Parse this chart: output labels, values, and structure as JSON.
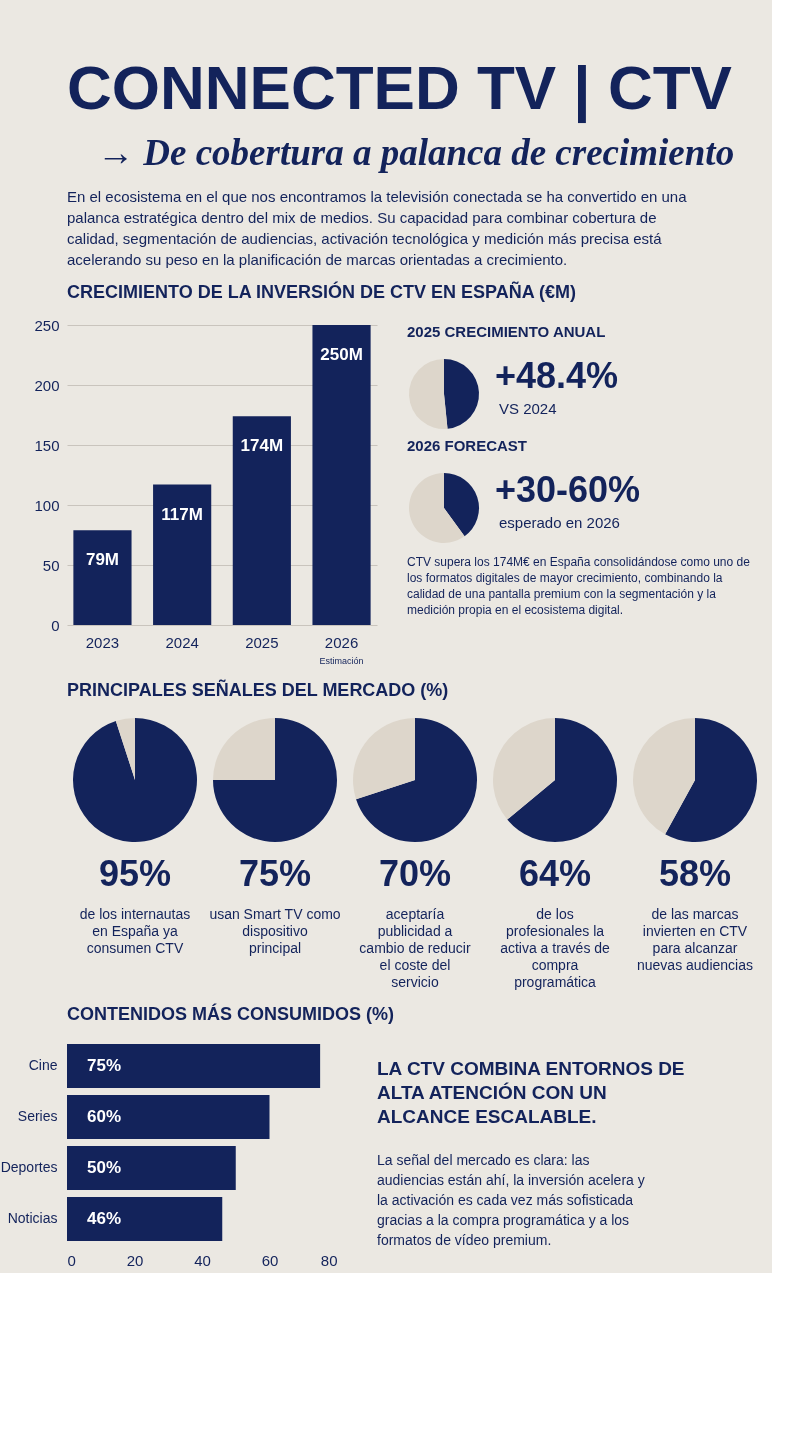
{
  "chart_data": [
    {
      "type": "other",
      "title": "CONNECTED TV | CTV",
      "subtitle": "→ De cobertura a palanca de crecimiento",
      "annotations": [
        "En el ecosistema en el que nos encontramos la televisión conectada se ha convertido en una palanca estratégica dentro del mix de medios. Su capacidad para combinar cobertura de calidad, segmentación de audiencias, activación tecnológica y medición más precisa está acelerando su peso en la planificación de marcas orientadas a crecimiento."
      ]
    },
    {
      "type": "bar",
      "title": "CRECIMIENTO DE LA INVERSIÓN DE CTV EN ESPAÑA (€M)",
      "categories": [
        "2023",
        "2024",
        "2025",
        "2026"
      ],
      "values": [
        79,
        117,
        174,
        250
      ],
      "value_labels": [
        "79M",
        "117M",
        "174M",
        "250M"
      ],
      "color": "#13235b",
      "ylim": [
        0,
        250
      ],
      "yticks": [
        0,
        50,
        100,
        150,
        200,
        250
      ],
      "grid": "y",
      "annotations": [
        "Estimación"
      ]
    },
    {
      "type": "pie",
      "title": "2025 CRECIMIENTO ANUAL",
      "values": [
        48.4,
        51.6
      ],
      "colors": [
        "#13235b",
        "#ddd6cb"
      ],
      "annotations": [
        "+48.4%",
        "VS 2024"
      ]
    },
    {
      "type": "pie",
      "title": "2026 FORECAST",
      "values": [
        40,
        60
      ],
      "colors": [
        "#13235b",
        "#ddd6cb"
      ],
      "annotations": [
        "+30-60%",
        "esperado en 2026"
      ]
    },
    {
      "type": "other",
      "annotations": [
        "CTV supera los 174M€ en España consolidándose como uno de los formatos digitales de mayor crecimiento, combinando la calidad de una pantalla premium con la segmentación y la medición propia en el ecosistema digital."
      ]
    },
    {
      "type": "pie",
      "title": "PRINCIPALES SEÑALES DEL MERCADO (%)",
      "values": [
        95,
        5
      ],
      "colors": [
        "#13235b",
        "#ddd6cb"
      ],
      "annotations": [
        "95%",
        "de los internautas en España ya consumen CTV"
      ]
    },
    {
      "type": "pie",
      "values": [
        75,
        25
      ],
      "colors": [
        "#13235b",
        "#ddd6cb"
      ],
      "annotations": [
        "75%",
        "usan Smart TV como dispositivo principal"
      ]
    },
    {
      "type": "pie",
      "values": [
        70,
        30
      ],
      "colors": [
        "#13235b",
        "#ddd6cb"
      ],
      "annotations": [
        "70%",
        "aceptaría publicidad a cambio de reducir el coste del servicio"
      ]
    },
    {
      "type": "pie",
      "values": [
        64,
        36
      ],
      "colors": [
        "#13235b",
        "#ddd6cb"
      ],
      "annotations": [
        "64%",
        "de los profesionales la activa a través de compra programática"
      ]
    },
    {
      "type": "pie",
      "values": [
        58,
        42
      ],
      "colors": [
        "#13235b",
        "#ddd6cb"
      ],
      "annotations": [
        "58%",
        "de las marcas invierten en CTV para alcanzar nuevas audiencias"
      ]
    },
    {
      "type": "bar",
      "orientation": "horizontal",
      "title": "CONTENIDOS MÁS CONSUMIDOS (%)",
      "categories": [
        "Cine",
        "Series",
        "Deportes",
        "Noticias"
      ],
      "values": [
        75,
        60,
        50,
        46
      ],
      "value_labels": [
        "75%",
        "60%",
        "50%",
        "46%"
      ],
      "color": "#13235b",
      "xlim": [
        0,
        80
      ],
      "xticks": [
        0,
        20,
        40,
        60,
        80
      ]
    },
    {
      "type": "other",
      "title": "LA CTV COMBINA ENTORNOS DE ALTA ATENCIÓN CON UN ALCANCE ESCALABLE.",
      "annotations": [
        "La señal del mercado es clara: las audiencias están ahí, la inversión acelera y la activación es cada vez más sofisticada gracias a la compra programática y a los formatos de vídeo premium."
      ]
    }
  ]
}
